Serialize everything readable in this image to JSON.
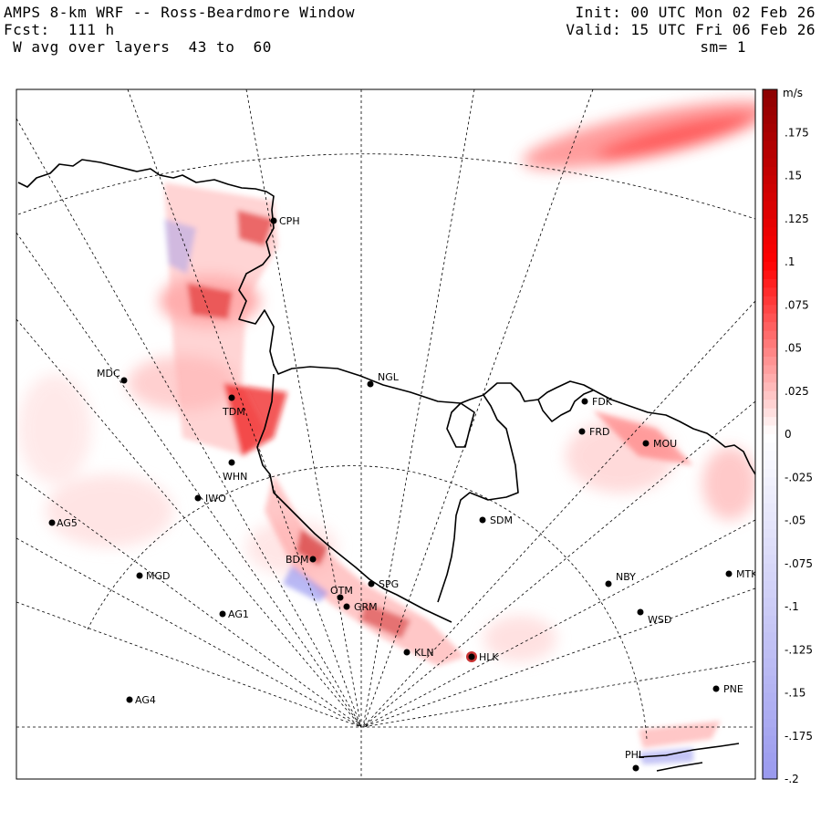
{
  "header": {
    "title": "AMPS 8-km WRF -- Ross-Beardmore Window",
    "forecast": "Fcst:  111 h",
    "field": " W avg over layers  43 to  60",
    "init": "Init: 00 UTC Mon 02 Feb 26",
    "valid": "Valid: 15 UTC Fri 06 Feb 26",
    "smoothing": "sm= 1"
  },
  "colorbar": {
    "unit": "m/s",
    "labels": [
      ".175",
      ".15",
      ".125",
      ".1",
      ".075",
      ".05",
      ".025",
      "0",
      "-.025",
      "-.05",
      "-.075",
      "-.1",
      "-.125",
      "-.15",
      "-.175",
      "-.2"
    ],
    "max_color": "#8b0000",
    "pos_color": "#ff0000",
    "zero_color": "#ffffff",
    "neg_color": "#9999ee",
    "min_value": -0.2,
    "max_value": 0.2
  },
  "stations": [
    {
      "id": "CPH"
    },
    {
      "id": "MDC"
    },
    {
      "id": "NGL"
    },
    {
      "id": "TDM"
    },
    {
      "id": "FDK"
    },
    {
      "id": "FRD"
    },
    {
      "id": "MOU"
    },
    {
      "id": "WHN"
    },
    {
      "id": "IWO"
    },
    {
      "id": "AG5"
    },
    {
      "id": "SDM"
    },
    {
      "id": "BDM"
    },
    {
      "id": "MGD"
    },
    {
      "id": "NBY"
    },
    {
      "id": "MTK"
    },
    {
      "id": "OTM"
    },
    {
      "id": "SPG"
    },
    {
      "id": "GRM"
    },
    {
      "id": "AG1"
    },
    {
      "id": "WSD"
    },
    {
      "id": "KLN"
    },
    {
      "id": "HLK"
    },
    {
      "id": "AG4"
    },
    {
      "id": "PNE"
    },
    {
      "id": "PHL"
    }
  ]
}
